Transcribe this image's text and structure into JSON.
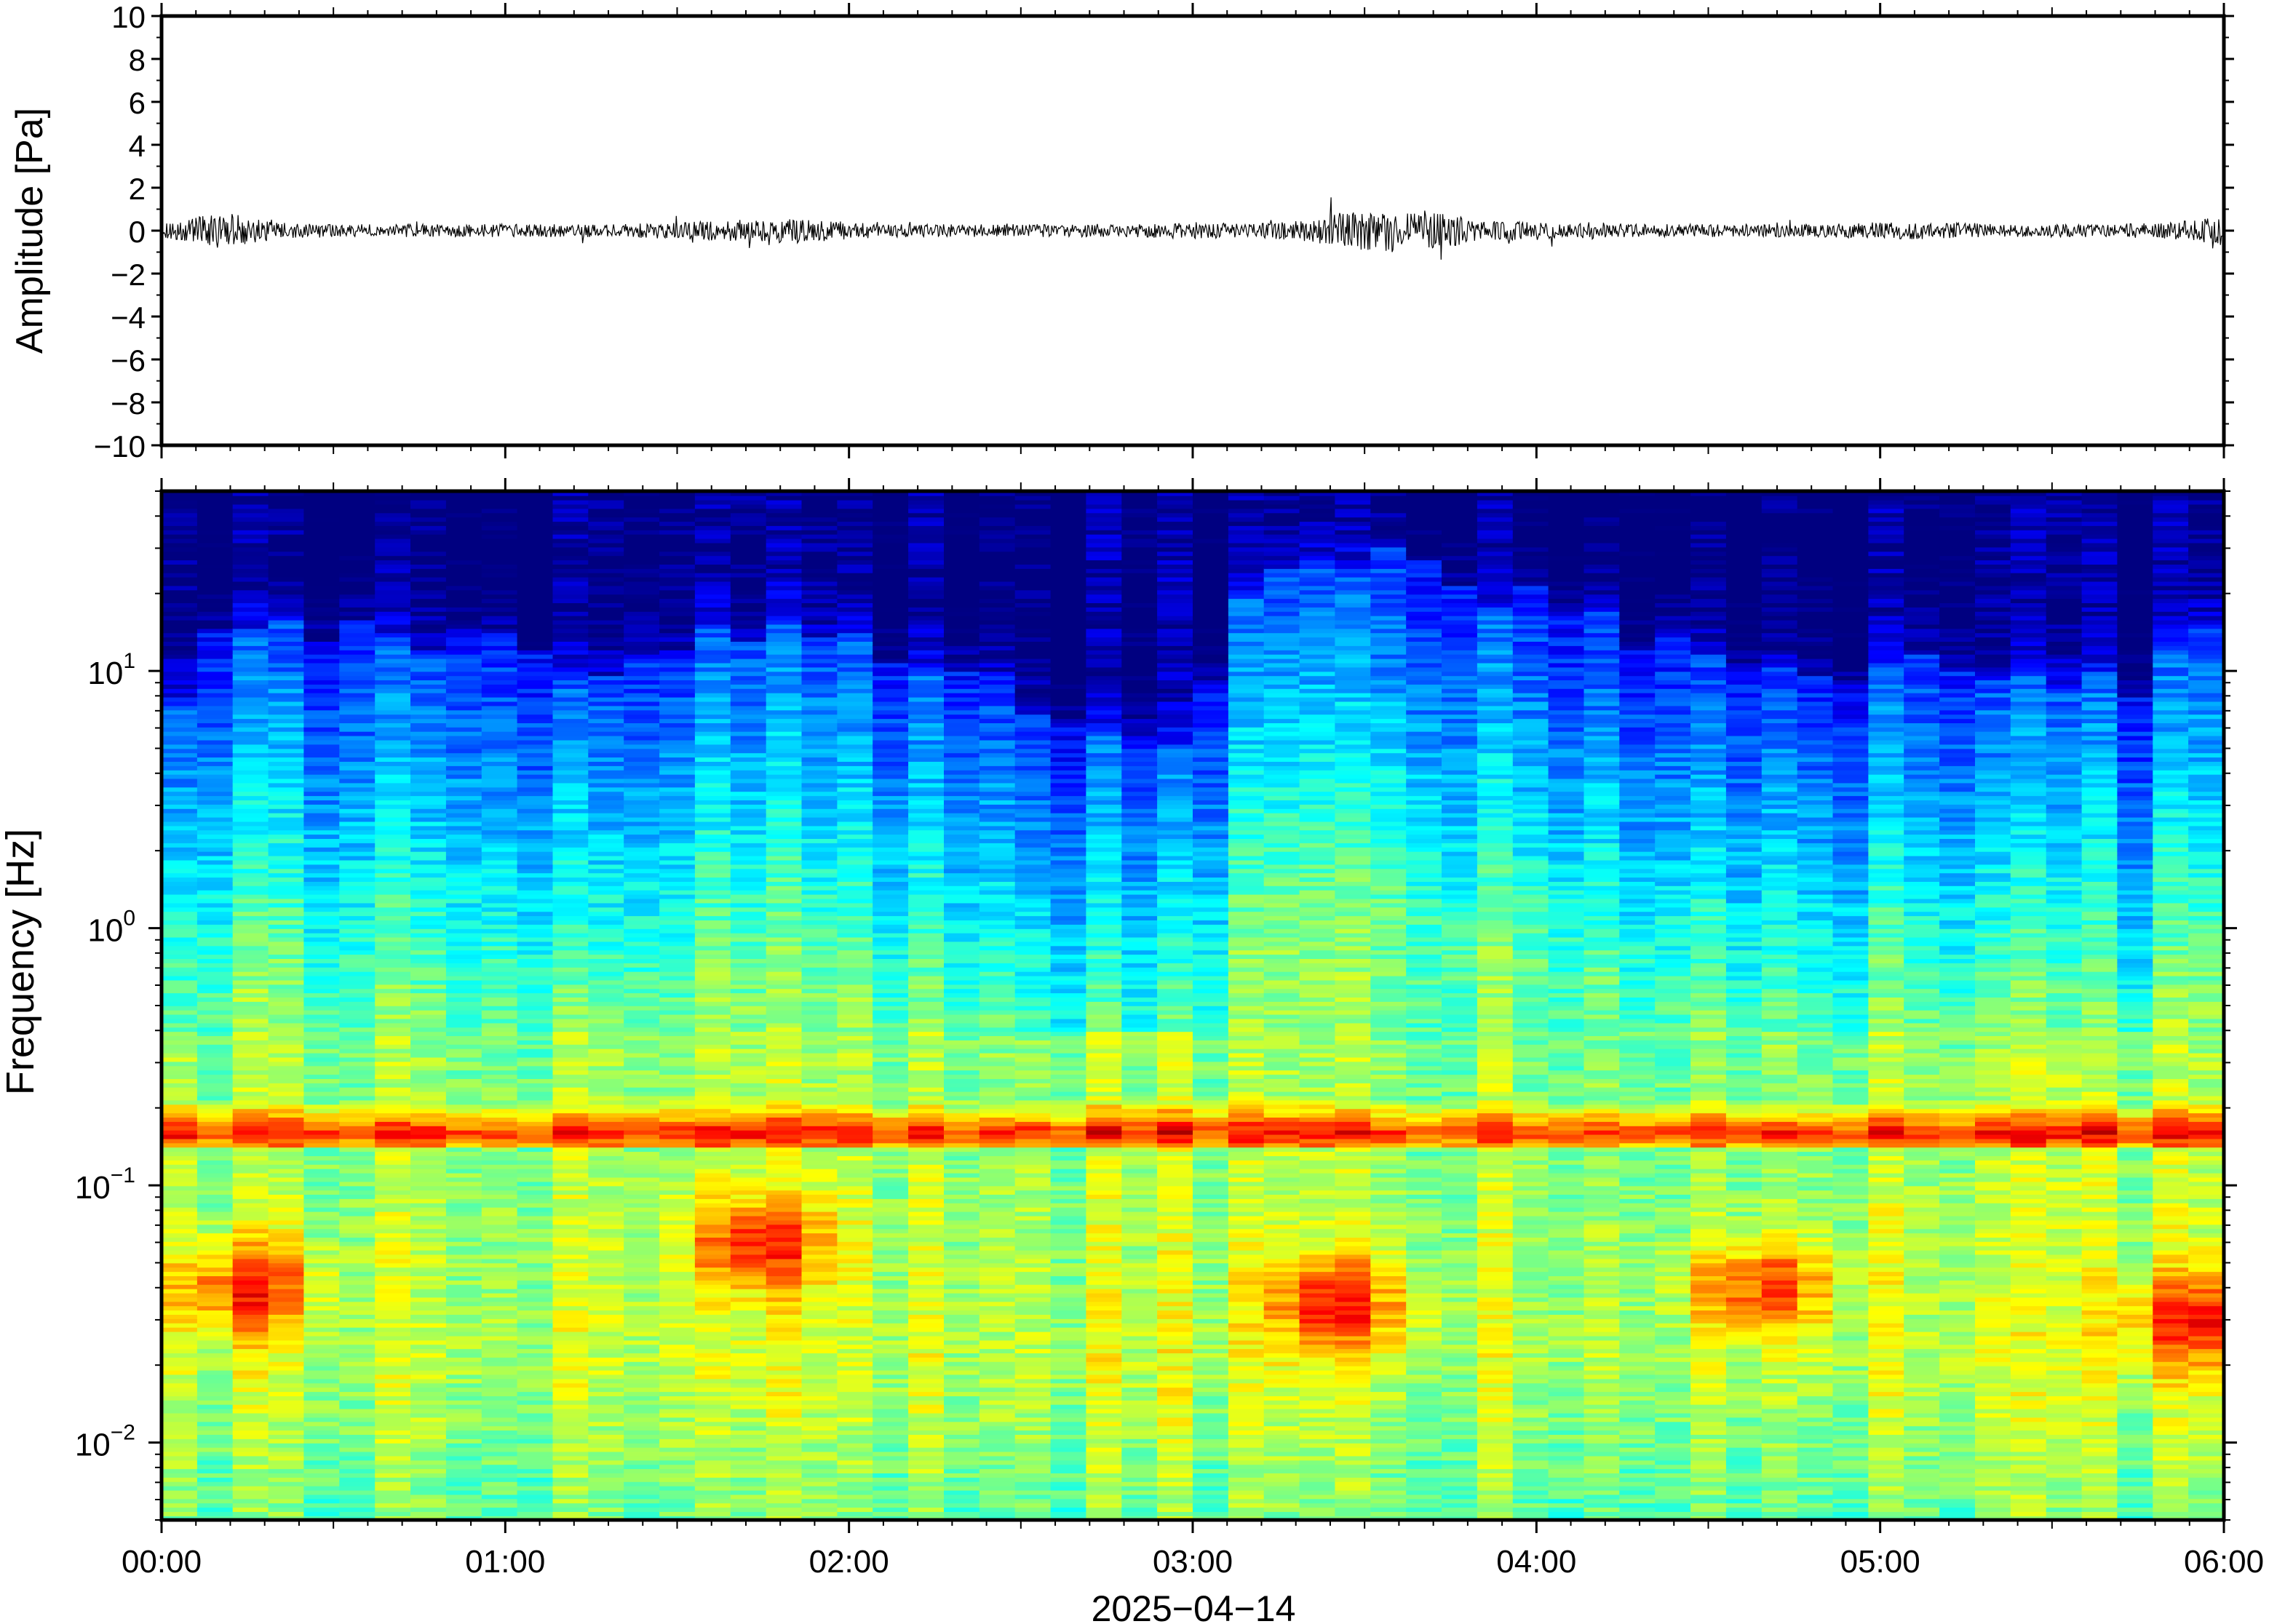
{
  "chart_data": [
    {
      "type": "line",
      "title": "",
      "ylabel": "Amplitude [Pa]",
      "ylim": [
        -10,
        10
      ],
      "yticks": [
        10,
        8,
        6,
        4,
        2,
        0,
        -2,
        -4,
        -6,
        -8,
        -10
      ],
      "ytick_labels": [
        "10",
        "8",
        "6",
        "4",
        "2",
        "0",
        "−2",
        "−4",
        "−6",
        "−8",
        "−10"
      ],
      "xlim": [
        "00:00",
        "06:00"
      ],
      "envelope_note_minutes": [
        0,
        10,
        20,
        30,
        40,
        50,
        60,
        70,
        80,
        90,
        100,
        110,
        120,
        130,
        140,
        150,
        160,
        170,
        180,
        190,
        200,
        210,
        220,
        230,
        240,
        250,
        260,
        270,
        280,
        290,
        300,
        310,
        320,
        330,
        340,
        350,
        360
      ],
      "envelope_pa": [
        0.3,
        0.9,
        0.4,
        0.3,
        0.3,
        0.3,
        0.3,
        0.3,
        0.3,
        0.4,
        0.5,
        0.6,
        0.4,
        0.3,
        0.3,
        0.3,
        0.3,
        0.3,
        0.4,
        0.3,
        0.5,
        1.1,
        1.0,
        0.5,
        0.4,
        0.4,
        0.3,
        0.3,
        0.3,
        0.3,
        0.4,
        0.4,
        0.3,
        0.3,
        0.3,
        0.4,
        0.7
      ]
    },
    {
      "type": "heatmap",
      "title": "",
      "ylabel": "Frequency [Hz]",
      "yscale": "log",
      "ylim": [
        0.005,
        50
      ],
      "ytick_values": [
        10,
        1,
        0.1,
        0.01
      ],
      "ytick_labels": [
        {
          "base": "10",
          "exp": "1"
        },
        {
          "base": "10",
          "exp": "0"
        },
        {
          "base": "10",
          "exp": "−1"
        },
        {
          "base": "10",
          "exp": "−2"
        }
      ],
      "xlabel": "2025−04−14",
      "xticks": [
        "00:00",
        "01:00",
        "02:00",
        "03:00",
        "04:00",
        "05:00",
        "06:00"
      ],
      "colormap": "jet",
      "colors": {
        "low": "#00008f",
        "mid": "#9fff60",
        "high": "#d73027"
      },
      "time_minutes": [
        0,
        15,
        30,
        45,
        60,
        75,
        90,
        105,
        120,
        135,
        150,
        165,
        180,
        195,
        210,
        225,
        240,
        255,
        270,
        285,
        300,
        315,
        330,
        345,
        360
      ],
      "upper_edge_hz": [
        6,
        16,
        14,
        13,
        12,
        11,
        12,
        15,
        14,
        10,
        8,
        6,
        5,
        25,
        30,
        22,
        18,
        14,
        12,
        11,
        10,
        11,
        9,
        8,
        20
      ],
      "microbarom_band_hz": [
        0.14,
        0.22
      ],
      "microbarom_peak_hz": 0.16,
      "low_frequency_hotspots": [
        {
          "time_minutes": 15,
          "freq_hz": 0.04
        },
        {
          "time_minutes": 105,
          "freq_hz": 0.06
        },
        {
          "time_minutes": 205,
          "freq_hz": 0.035
        },
        {
          "time_minutes": 280,
          "freq_hz": 0.04
        },
        {
          "time_minutes": 355,
          "freq_hz": 0.03
        }
      ]
    }
  ]
}
